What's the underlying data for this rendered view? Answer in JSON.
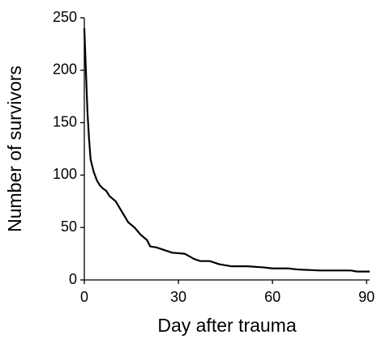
{
  "chart_data": {
    "type": "line",
    "x_label": "Day after trauma",
    "y_label": "Number of survivors",
    "x": [
      0,
      0.5,
      1,
      1.5,
      2,
      3,
      4,
      5,
      6,
      7,
      8,
      10,
      12,
      14,
      16,
      18,
      20,
      21,
      23,
      25,
      28,
      32,
      35,
      37,
      40,
      43,
      47,
      52,
      57,
      60,
      65,
      68,
      75,
      80,
      85,
      87,
      91
    ],
    "values": [
      240,
      200,
      160,
      135,
      115,
      103,
      95,
      90,
      87,
      85,
      80,
      75,
      65,
      55,
      50,
      43,
      38,
      32,
      31,
      29,
      26,
      25,
      20,
      18,
      18,
      15,
      13,
      13,
      12,
      11,
      11,
      10,
      9,
      9,
      9,
      8,
      8
    ],
    "color": "#000000",
    "xlim": [
      0,
      91
    ],
    "xticks": [
      0,
      30,
      60,
      90
    ],
    "ylim": [
      0,
      250
    ],
    "yticks": [
      0,
      50,
      100,
      150,
      200,
      250
    ],
    "grid": false
  }
}
